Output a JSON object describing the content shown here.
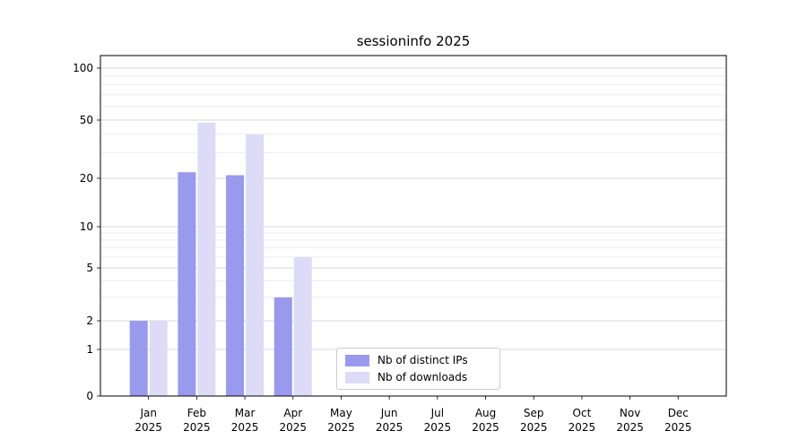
{
  "chart_data": {
    "type": "bar",
    "title": "sessioninfo 2025",
    "categories": [
      "Jan",
      "Feb",
      "Mar",
      "Apr",
      "May",
      "Jun",
      "Jul",
      "Aug",
      "Sep",
      "Oct",
      "Nov",
      "Dec"
    ],
    "year_label": "2025",
    "series": [
      {
        "name": "Nb of distinct IPs",
        "color": "#9999ee",
        "values": [
          2,
          22,
          21,
          3,
          0,
          0,
          0,
          0,
          0,
          0,
          0,
          0
        ]
      },
      {
        "name": "Nb of downloads",
        "color": "#dcdcf8",
        "values": [
          2,
          48,
          40,
          6,
          0,
          0,
          0,
          0,
          0,
          0,
          0,
          0
        ]
      }
    ],
    "yscale": "symlog",
    "ylim": [
      0,
      100
    ],
    "y_major_ticks": [
      0,
      1,
      2,
      5,
      10,
      20,
      50,
      100
    ],
    "y_minor_ticks": [
      3,
      4,
      6,
      7,
      8,
      9,
      30,
      40,
      60,
      70,
      80,
      90
    ],
    "xlabel": "",
    "ylabel": "",
    "grid": "horizontal",
    "legend_position": "lower-center-inside",
    "colors": {
      "grid_major": "#d9d9d9",
      "grid_minor": "#ededed",
      "axis": "#000000",
      "background": "#ffffff"
    }
  }
}
